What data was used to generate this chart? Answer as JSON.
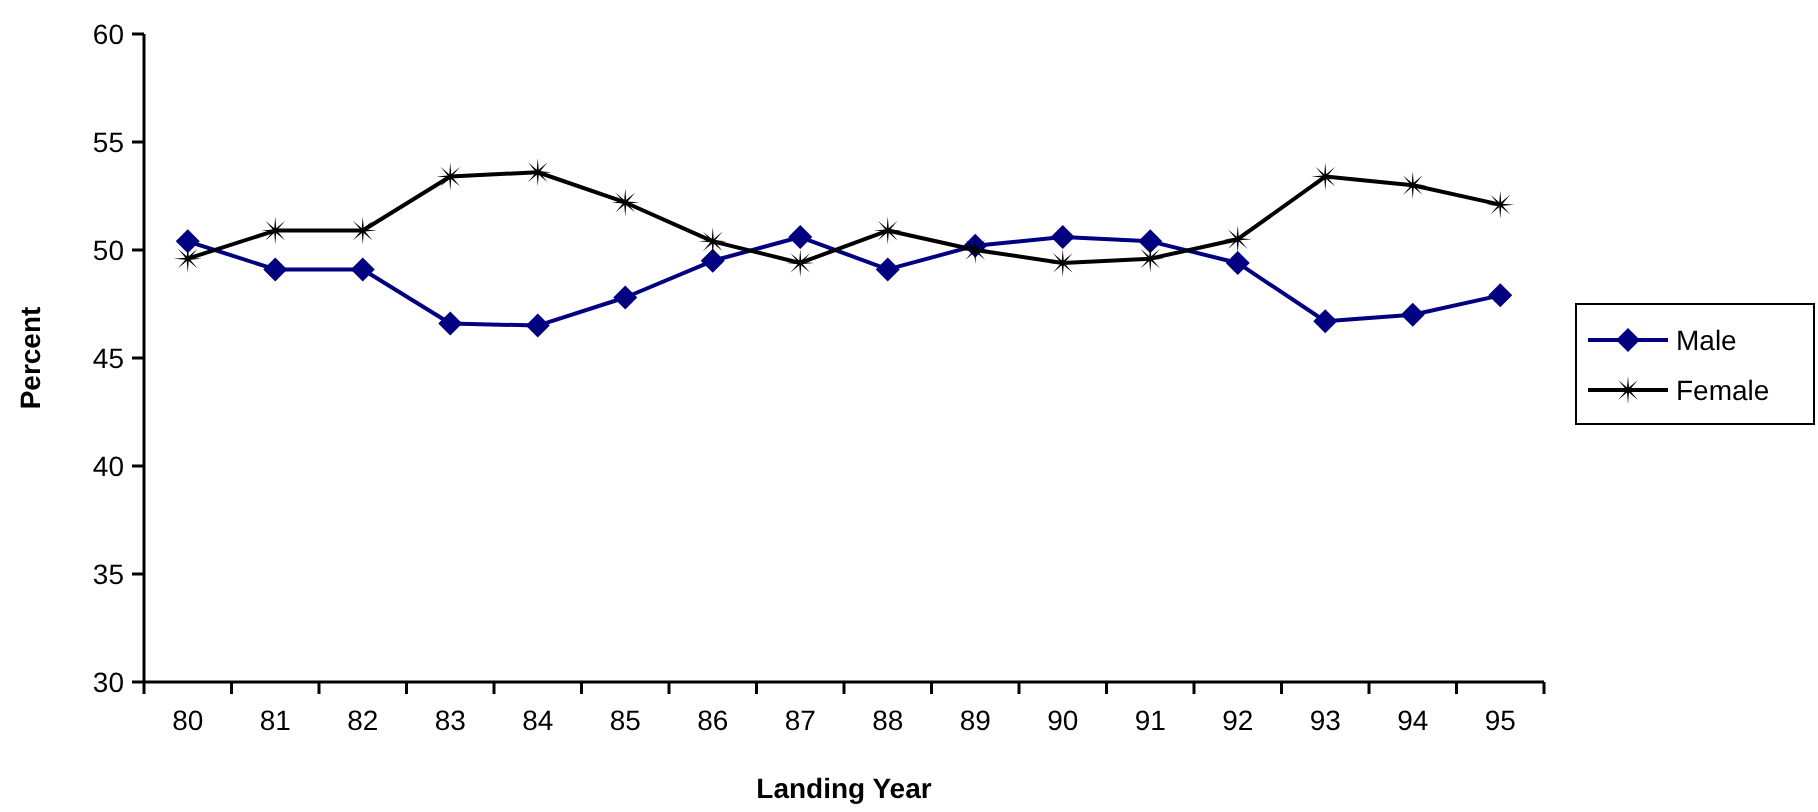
{
  "chart_data": {
    "type": "line",
    "xlabel": "Landing Year",
    "ylabel": "Percent",
    "categories": [
      "80",
      "81",
      "82",
      "83",
      "84",
      "85",
      "86",
      "87",
      "88",
      "89",
      "90",
      "91",
      "92",
      "93",
      "94",
      "95"
    ],
    "series": [
      {
        "name": "Male",
        "color": "#000080",
        "marker": "diamond",
        "values": [
          50.4,
          49.1,
          49.1,
          46.6,
          46.5,
          47.8,
          49.5,
          50.6,
          49.1,
          50.2,
          50.6,
          50.4,
          49.4,
          46.7,
          47.0,
          47.9
        ]
      },
      {
        "name": "Female",
        "color": "#000000",
        "marker": "star",
        "values": [
          49.6,
          50.9,
          50.9,
          53.4,
          53.6,
          52.2,
          50.4,
          49.4,
          50.9,
          50.0,
          49.4,
          49.6,
          50.5,
          53.4,
          53.0,
          52.1
        ]
      }
    ],
    "ylim": [
      30,
      60
    ],
    "yticks": [
      30,
      35,
      40,
      45,
      50,
      55,
      60
    ],
    "legend": "right",
    "line_style": "solid"
  }
}
